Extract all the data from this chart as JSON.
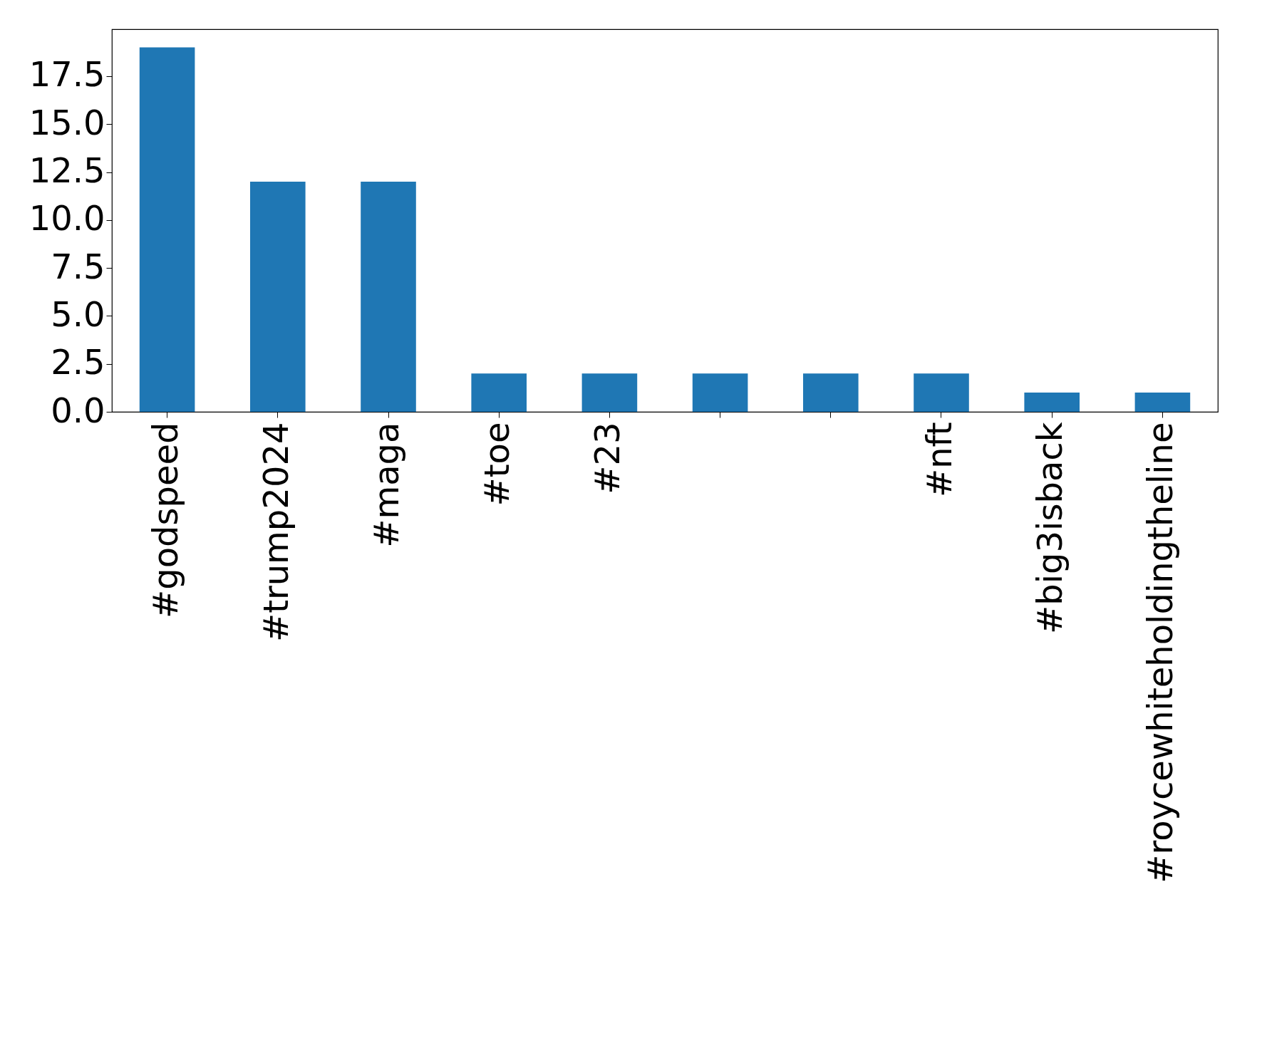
{
  "chart_data": {
    "type": "bar",
    "categories": [
      "#godspeed",
      "#trump2024",
      "#maga",
      "#toe",
      "#23",
      null,
      null,
      "#nft",
      "#big3isback",
      "#roycewhiteholdingtheline"
    ],
    "values": [
      19,
      12,
      12,
      2,
      2,
      2,
      2,
      2,
      1,
      1
    ],
    "color": "#1f77b4",
    "ylim": [
      0,
      19.95
    ],
    "yticks": [
      {
        "value": 0,
        "label": "0.0"
      },
      {
        "value": 2.5,
        "label": "2.5"
      },
      {
        "value": 5,
        "label": "5.0"
      },
      {
        "value": 7.5,
        "label": "7.5"
      },
      {
        "value": 10,
        "label": "10.0"
      },
      {
        "value": 12.5,
        "label": "12.5"
      },
      {
        "value": 15,
        "label": "15.0"
      },
      {
        "value": 17.5,
        "label": "17.5"
      }
    ],
    "grid": false
  }
}
